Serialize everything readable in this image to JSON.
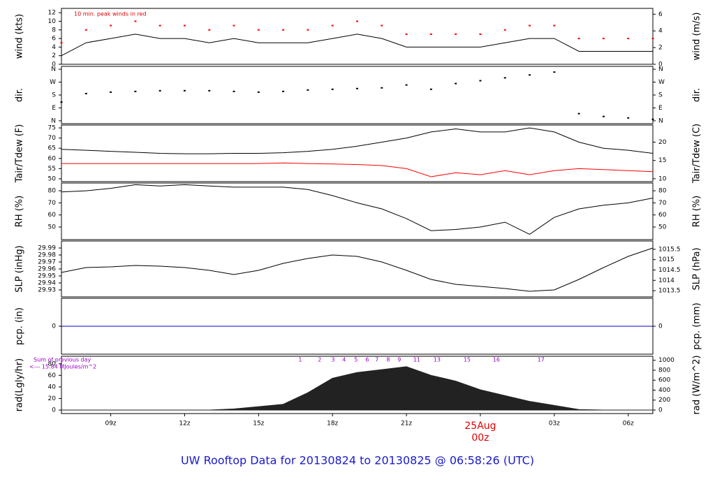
{
  "title": "UW Rooftop Data for 20130824  to  20130825 @ 06:58:26  (UTC)",
  "chart_data": [
    {
      "type": "line",
      "ylabel": "wind (kts)",
      "y2label": "wind (m/s)",
      "annotation": "10 min. peak winds in red",
      "x": [
        7,
        8,
        9,
        10,
        11,
        12,
        13,
        14,
        15,
        16,
        17,
        18,
        19,
        20,
        21,
        22,
        23,
        24,
        25,
        26,
        27,
        28,
        29,
        30,
        31
      ],
      "xlim": [
        7,
        31
      ],
      "series": [
        {
          "color": "#000000",
          "values": [
            2,
            5,
            6,
            7,
            6,
            6,
            5,
            6,
            5,
            5,
            5,
            6,
            7,
            6,
            4,
            4,
            4,
            4,
            5,
            6,
            6,
            3,
            3,
            3,
            3
          ]
        },
        {
          "color": "#ff0000",
          "mode": "points",
          "values": [
            5,
            8,
            9,
            10,
            9,
            9,
            8,
            9,
            8,
            8,
            8,
            9,
            10,
            9,
            7,
            7,
            7,
            7,
            8,
            9,
            9,
            6,
            6,
            6,
            6
          ]
        }
      ],
      "ylim": [
        0,
        13
      ],
      "yticks": [
        0,
        2,
        4,
        6,
        8,
        10,
        12
      ],
      "y2lim": [
        0,
        6.7
      ],
      "y2ticks": [
        0,
        2,
        4,
        6
      ]
    },
    {
      "type": "scatter",
      "ylabel": "dir.",
      "y2label": "dir.",
      "x": [
        7,
        8,
        9,
        10,
        11,
        12,
        13,
        14,
        15,
        16,
        17,
        18,
        19,
        20,
        21,
        22,
        23,
        24,
        25,
        26,
        27,
        28,
        29,
        30,
        31
      ],
      "xlim": [
        7,
        31
      ],
      "series": [
        {
          "color": "#000000",
          "values": [
            130,
            190,
            200,
            205,
            210,
            210,
            210,
            205,
            200,
            205,
            215,
            220,
            225,
            230,
            250,
            220,
            260,
            280,
            300,
            320,
            340,
            50,
            30,
            20,
            10
          ]
        }
      ],
      "ylim": [
        -20,
        380
      ],
      "yticks": [
        {
          "value": 0,
          "label": "N"
        },
        {
          "value": 90,
          "label": "E"
        },
        {
          "value": 180,
          "label": "S"
        },
        {
          "value": 270,
          "label": "W"
        },
        {
          "value": 360,
          "label": "N"
        }
      ],
      "y2lim": [
        -20,
        380
      ],
      "y2ticks": [
        {
          "value": 0,
          "label": "N"
        },
        {
          "value": 90,
          "label": "E"
        },
        {
          "value": 180,
          "label": "S"
        },
        {
          "value": 270,
          "label": "W"
        },
        {
          "value": 360,
          "label": "N"
        }
      ]
    },
    {
      "type": "line",
      "ylabel": "Tair/Tdew (F)",
      "y2label": "Tair/Tdew (C)",
      "x": [
        7,
        8,
        9,
        10,
        11,
        12,
        13,
        14,
        15,
        16,
        17,
        18,
        19,
        20,
        21,
        22,
        23,
        24,
        25,
        26,
        27,
        28,
        29,
        30,
        31
      ],
      "xlim": [
        7,
        31
      ],
      "series": [
        {
          "color": "#000000",
          "values": [
            64.5,
            64,
            63.5,
            63,
            62.5,
            62.3,
            62.3,
            62.5,
            62.5,
            62.8,
            63.5,
            64.5,
            66,
            68,
            70,
            73,
            74.5,
            73,
            73,
            75,
            73,
            68,
            65,
            64,
            62.5
          ]
        },
        {
          "color": "#ff0000",
          "values": [
            57.5,
            57.5,
            57.5,
            57.5,
            57.5,
            57.5,
            57.5,
            57.5,
            57.5,
            57.8,
            57.5,
            57.3,
            57,
            56.5,
            55,
            51,
            53,
            52,
            54,
            52,
            54,
            55,
            54.5,
            54,
            53.5
          ]
        }
      ],
      "ylim": [
        48.6,
        76.4
      ],
      "yticks": [
        50,
        55,
        60,
        65,
        70,
        75
      ],
      "y2lim": [
        9.2,
        24.7
      ],
      "y2ticks": [
        10,
        15,
        20
      ]
    },
    {
      "type": "line",
      "ylabel": "RH (%)",
      "y2label": "RH (%)",
      "x": [
        7,
        8,
        9,
        10,
        11,
        12,
        13,
        14,
        15,
        16,
        17,
        18,
        19,
        20,
        21,
        22,
        23,
        24,
        25,
        26,
        27,
        28,
        29,
        30,
        31
      ],
      "xlim": [
        7,
        31
      ],
      "series": [
        {
          "color": "#000000",
          "values": [
            79,
            80,
            82,
            85,
            84,
            85,
            84,
            83,
            83,
            83,
            81,
            76,
            70,
            65,
            57,
            47,
            48,
            50,
            54,
            44,
            58,
            65,
            68,
            70,
            74
          ]
        }
      ],
      "ylim": [
        39.6,
        86.4
      ],
      "yticks": [
        50,
        60,
        70,
        80
      ],
      "y2lim": [
        39.6,
        86.4
      ],
      "y2ticks": [
        50,
        60,
        70,
        80
      ]
    },
    {
      "type": "line",
      "ylabel": "SLP (inHg)",
      "y2label": "SLP (hPa)",
      "x": [
        7,
        8,
        9,
        10,
        11,
        12,
        13,
        14,
        15,
        16,
        17,
        18,
        19,
        20,
        21,
        22,
        23,
        24,
        25,
        26,
        27,
        28,
        29,
        30,
        31
      ],
      "xlim": [
        7,
        31
      ],
      "series": [
        {
          "color": "#000000",
          "values": [
            29.955,
            29.962,
            29.963,
            29.965,
            29.964,
            29.962,
            29.958,
            29.952,
            29.958,
            29.968,
            29.975,
            29.98,
            29.978,
            29.97,
            29.958,
            29.945,
            29.938,
            29.935,
            29.932,
            29.928,
            29.93,
            29.945,
            29.962,
            29.978,
            29.99
          ]
        }
      ],
      "ylim": [
        29.92,
        30.0
      ],
      "yticks": [
        29.93,
        29.94,
        29.95,
        29.96,
        29.97,
        29.98,
        29.99
      ],
      "y2lim": [
        1013.2,
        1015.9
      ],
      "y2ticks": [
        1013.5,
        1014,
        1014.5,
        1015,
        1015.5
      ]
    },
    {
      "type": "line",
      "ylabel": "pcp. (in)",
      "y2label": "pcp. (mm)",
      "x": [
        7,
        8,
        9,
        10,
        11,
        12,
        13,
        14,
        15,
        16,
        17,
        18,
        19,
        20,
        21,
        22,
        23,
        24,
        25,
        26,
        27,
        28,
        29,
        30,
        31
      ],
      "xlim": [
        7,
        31
      ],
      "series": [
        {
          "color": "#0000cc",
          "values": [
            0,
            0,
            0,
            0,
            0,
            0,
            0,
            0,
            0,
            0,
            0,
            0,
            0,
            0,
            0,
            0,
            0,
            0,
            0,
            0,
            0,
            0,
            0,
            0,
            0
          ]
        }
      ],
      "ylim": [
        -1,
        1
      ],
      "yticks": [
        0
      ],
      "y2lim": [
        -1,
        1
      ],
      "y2ticks": [
        0
      ]
    },
    {
      "type": "area",
      "ylabel": "rad(Lgly/hr)",
      "y2label": "rad (W/m^2)",
      "annotations": [
        "Sum of previous day",
        "<--- 15.84 MJoules/m^2"
      ],
      "hour_marks": {
        "x": [
          16.69,
          17.48,
          18.02,
          18.47,
          18.95,
          19.41,
          19.8,
          20.26,
          20.71,
          21.42,
          22.24,
          23.46,
          24.65,
          26.46
        ],
        "values": [
          1,
          2,
          3,
          4,
          5,
          6,
          7,
          8,
          9,
          11,
          13,
          15,
          16,
          17
        ]
      },
      "x": [
        7,
        8,
        9,
        10,
        11,
        12,
        13,
        14,
        15,
        16,
        17,
        18,
        19,
        20,
        21,
        22,
        23,
        24,
        25,
        26,
        27,
        28,
        29,
        30,
        31
      ],
      "xlim": [
        7,
        31
      ],
      "series": [
        {
          "color": "#222222",
          "values": [
            0,
            0,
            0,
            0,
            0,
            0,
            0,
            2,
            6,
            10,
            30,
            55,
            65,
            70,
            75,
            60,
            50,
            35,
            25,
            15,
            8,
            1,
            0,
            0,
            0
          ]
        }
      ],
      "ylim": [
        -6,
        93
      ],
      "yticks": [
        0,
        20,
        40,
        60,
        80
      ],
      "y2lim": [
        -70,
        1080
      ],
      "y2ticks": [
        0,
        200,
        400,
        600,
        800,
        1000
      ],
      "xticks": [
        {
          "value": 9,
          "label": "09z"
        },
        {
          "value": 12,
          "label": "12z"
        },
        {
          "value": 15,
          "label": "15z"
        },
        {
          "value": 18,
          "label": "18z"
        },
        {
          "value": 21,
          "label": "21z"
        },
        {
          "value": 27,
          "label": "03z"
        },
        {
          "value": 30,
          "label": "06z"
        }
      ],
      "date_mark": {
        "value": 24,
        "label": "25Aug",
        "sublabel": "00z"
      }
    }
  ]
}
